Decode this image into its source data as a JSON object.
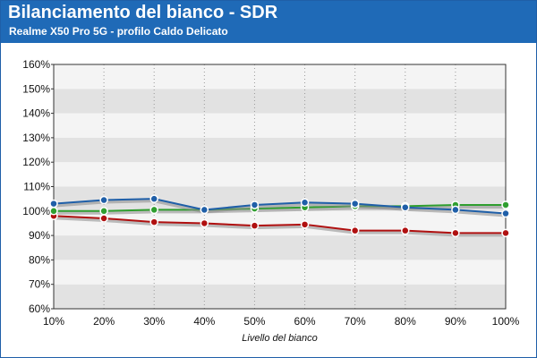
{
  "header": {
    "title": "Bilanciamento del bianco - SDR",
    "subtitle": "Realme X50 Pro 5G - profilo Caldo Delicato"
  },
  "colors": {
    "header_bg": "#1f6ab7",
    "band_dark": "#e2e2e2",
    "band_light": "#f4f4f4",
    "red": "#b01010",
    "green": "#2f9e2f",
    "blue": "#1f5fa8"
  },
  "chart_data": {
    "type": "line",
    "title": "Bilanciamento del bianco - SDR",
    "subtitle": "Realme X50 Pro 5G - profilo Caldo Delicato",
    "xlabel": "Livello del bianco",
    "ylabel": "",
    "categories": [
      "10%",
      "20%",
      "30%",
      "40%",
      "50%",
      "60%",
      "70%",
      "80%",
      "90%",
      "100%"
    ],
    "y_ticks": [
      "60%",
      "70%",
      "80%",
      "90%",
      "100%",
      "110%",
      "120%",
      "130%",
      "140%",
      "150%",
      "160%"
    ],
    "ylim": [
      60,
      160
    ],
    "grid": true,
    "series": [
      {
        "color": "red",
        "values": [
          98,
          97,
          95.5,
          95,
          94,
          94.5,
          92,
          92,
          91,
          91
        ]
      },
      {
        "color": "green",
        "values": [
          100,
          100,
          100.5,
          100.5,
          101,
          101.5,
          102,
          102,
          102.5,
          102.5
        ]
      },
      {
        "color": "blue",
        "values": [
          103,
          104.5,
          105,
          100.5,
          102.5,
          103.5,
          103,
          101.5,
          100.5,
          99
        ]
      }
    ]
  }
}
